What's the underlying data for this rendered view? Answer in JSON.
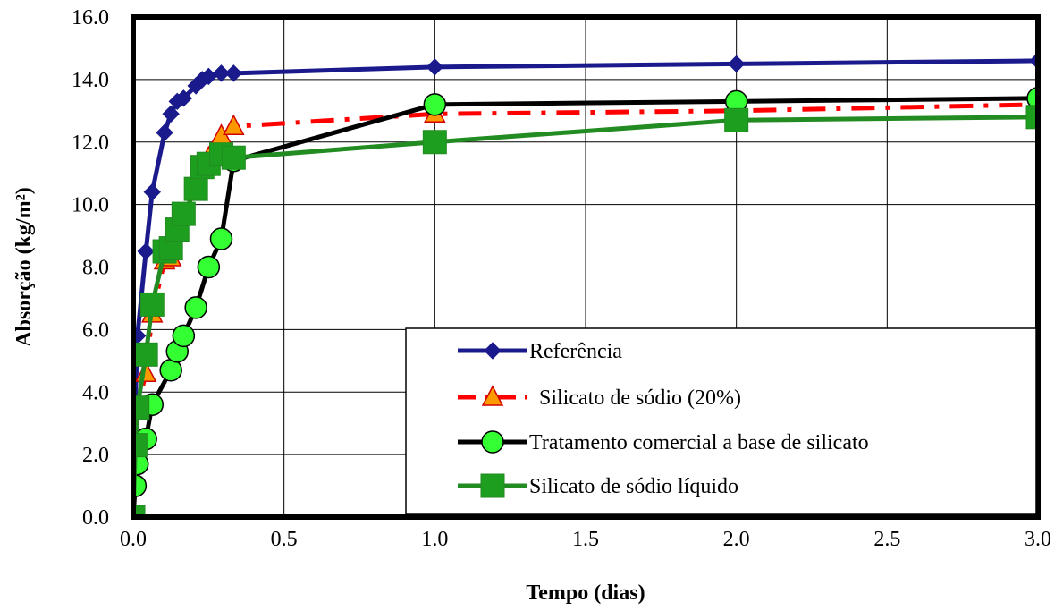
{
  "chart_data": {
    "type": "line",
    "xlabel": "Tempo (dias)",
    "ylabel": "Absorção (kg/m²)",
    "xlim": [
      0,
      3
    ],
    "ylim": [
      0,
      16
    ],
    "xticks": [
      "0.0",
      "0.5",
      "1.0",
      "1.5",
      "2.0",
      "2.5",
      "3.0"
    ],
    "yticks": [
      "0.0",
      "2.0",
      "4.0",
      "6.0",
      "8.0",
      "10.0",
      "12.0",
      "14.0",
      "16.0"
    ],
    "grid": true,
    "legend_position": "bottom-right",
    "series": [
      {
        "name": "Referência",
        "color": "#1a1a8c",
        "marker": "diamond",
        "line_style": "solid",
        "x": [
          0,
          0.007,
          0.014,
          0.042,
          0.063,
          0.104,
          0.125,
          0.146,
          0.167,
          0.208,
          0.229,
          0.25,
          0.292,
          0.333,
          1.0,
          2.0,
          3.0
        ],
        "y": [
          0,
          3.7,
          5.8,
          8.5,
          10.4,
          12.3,
          12.9,
          13.3,
          13.4,
          13.8,
          14.0,
          14.1,
          14.2,
          14.2,
          14.4,
          14.5,
          14.6
        ]
      },
      {
        "name": "Silicato de sódio (20%)",
        "color": "#ff0000",
        "marker_color": "#ff9900",
        "marker_edge": "#d00000",
        "marker": "triangle",
        "line_style": "dashdot",
        "x": [
          0,
          0.007,
          0.014,
          0.042,
          0.063,
          0.104,
          0.125,
          0.146,
          0.167,
          0.208,
          0.229,
          0.25,
          0.292,
          0.333,
          1.0,
          2.0,
          3.0
        ],
        "y": [
          0,
          2.4,
          3.5,
          4.6,
          6.5,
          8.2,
          8.3,
          9.2,
          9.6,
          10.6,
          11.2,
          11.5,
          12.2,
          12.5,
          12.9,
          13.0,
          13.2
        ]
      },
      {
        "name": "Tratamento comercial a base de silicato",
        "color": "#000000",
        "marker_color": "#33ff33",
        "marker_edge": "#000000",
        "marker": "circle",
        "line_style": "solid",
        "x": [
          0,
          0.007,
          0.014,
          0.042,
          0.063,
          0.125,
          0.146,
          0.167,
          0.208,
          0.25,
          0.292,
          0.333,
          1.0,
          2.0,
          3.0
        ],
        "y": [
          0,
          1.0,
          1.7,
          2.5,
          3.6,
          4.7,
          5.3,
          5.8,
          6.7,
          8.0,
          8.9,
          11.4,
          13.2,
          13.3,
          13.4
        ]
      },
      {
        "name": "Silicato de sódio líquido",
        "color": "#228b22",
        "marker_color": "#1e9e1e",
        "marker": "square",
        "line_style": "solid",
        "x": [
          0,
          0.007,
          0.014,
          0.042,
          0.063,
          0.104,
          0.125,
          0.146,
          0.167,
          0.208,
          0.229,
          0.25,
          0.292,
          0.333,
          1.0,
          2.0,
          3.0
        ],
        "y": [
          0,
          2.3,
          3.5,
          5.2,
          6.8,
          8.5,
          8.6,
          9.2,
          9.7,
          10.5,
          11.2,
          11.3,
          11.6,
          11.5,
          12.0,
          12.7,
          12.8
        ]
      }
    ]
  }
}
